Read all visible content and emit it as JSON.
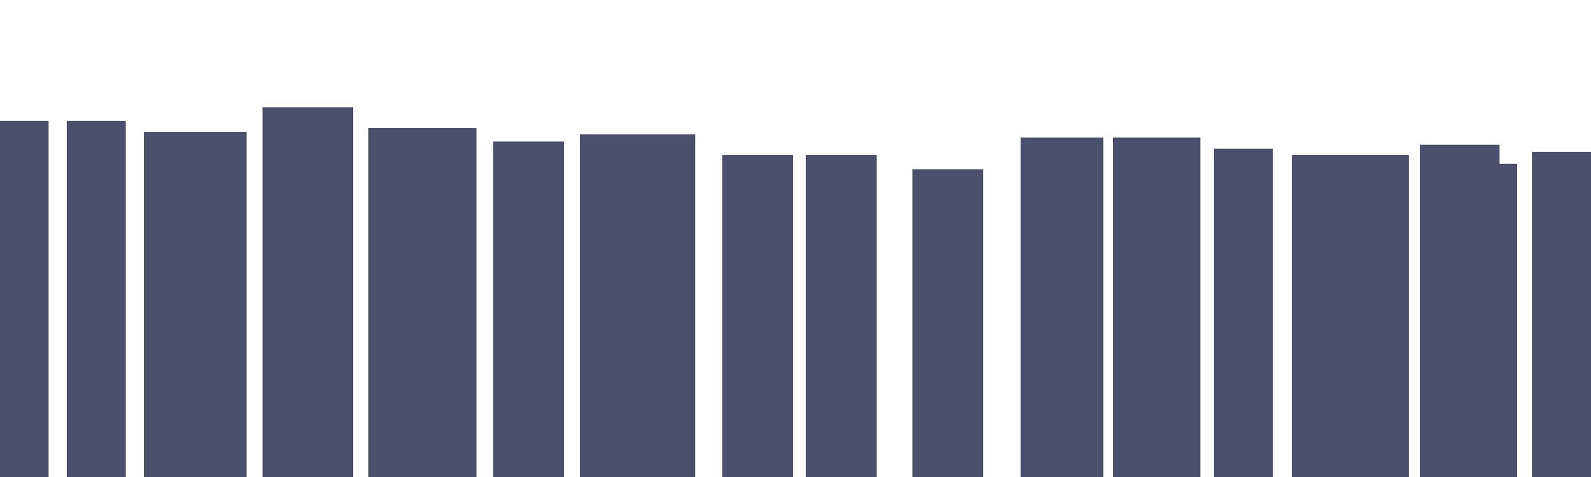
{
  "chart_data": {
    "type": "bar",
    "title": "",
    "xlabel": "",
    "ylabel": "",
    "ylim": [
      0,
      600
    ],
    "grid": false,
    "legend": "none",
    "color": "#4b516d",
    "values": [
      448,
      448,
      434,
      465,
      439,
      422,
      431,
      405,
      405,
      387,
      427,
      427,
      413,
      405,
      418,
      394,
      409
    ]
  }
}
